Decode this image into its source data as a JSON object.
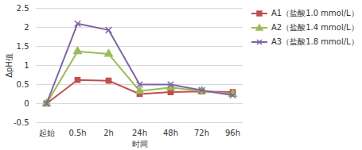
{
  "chart_data": {
    "type": "line",
    "x_label": "时间",
    "y_label": "ΔpH值",
    "categories": [
      "起始",
      "0.5h",
      "2h",
      "24h",
      "48h",
      "72h",
      "96h"
    ],
    "series": [
      {
        "name": "A1（盐酸1.0 mmol/L）",
        "color": "#c0504d",
        "marker": "square",
        "values": [
          0,
          0.62,
          0.6,
          0.25,
          0.3,
          0.32,
          0.3
        ]
      },
      {
        "name": "A2（盐酸1.4 mmol/L）",
        "color": "#9bbb59",
        "marker": "triangle",
        "values": [
          0,
          1.37,
          1.3,
          0.33,
          0.42,
          0.33,
          0.25
        ]
      },
      {
        "name": "A3（盐酸1.8 mmol/L）",
        "color": "#8064a2",
        "marker": "x",
        "values": [
          0,
          2.1,
          1.93,
          0.5,
          0.5,
          0.35,
          0.22
        ]
      }
    ],
    "ylim": [
      -0.5,
      2.5
    ],
    "yticks": [
      -0.5,
      0,
      0.5,
      1,
      1.5,
      2,
      2.5
    ],
    "grid": true,
    "legend": "top-right"
  }
}
